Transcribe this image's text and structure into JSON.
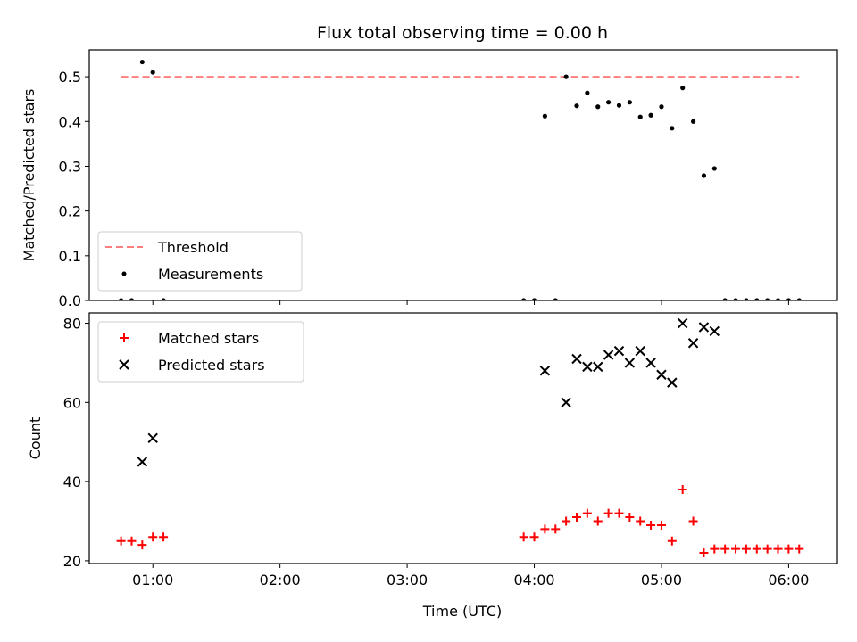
{
  "chart_data": [
    {
      "type": "scatter",
      "title": "Flux total observing time = 0.00 h",
      "ylabel": "Matched/Predicted stars",
      "xlabel": "",
      "ylim": [
        0,
        0.56
      ],
      "xlim": [
        "00:30",
        "06:23"
      ],
      "yticks": [
        "0.0",
        "0.1",
        "0.2",
        "0.3",
        "0.4",
        "0.5"
      ],
      "xticks": [
        "01:00",
        "02:00",
        "03:00",
        "04:00",
        "05:00",
        "06:00"
      ],
      "show_xtick_labels": false,
      "grid": false,
      "legend": {
        "placement": "lower-left",
        "entries": [
          "Threshold",
          "Measurements"
        ]
      },
      "threshold": {
        "name": "Threshold",
        "value": 0.5,
        "x_range": [
          "00:45",
          "06:05"
        ],
        "color": "#ff7f7f",
        "style": "dashed"
      },
      "series": [
        {
          "name": "Measurements",
          "color": "#000000",
          "marker": "dot",
          "points": [
            [
              "00:45",
              0.0
            ],
            [
              "00:50",
              0.0
            ],
            [
              "00:55",
              0.533
            ],
            [
              "01:00",
              0.51
            ],
            [
              "01:05",
              0.0
            ],
            [
              "03:55",
              0.0
            ],
            [
              "04:00",
              0.0
            ],
            [
              "04:05",
              0.412
            ],
            [
              "04:10",
              0.0
            ],
            [
              "04:15",
              0.5
            ],
            [
              "04:20",
              0.435
            ],
            [
              "04:25",
              0.464
            ],
            [
              "04:30",
              0.433
            ],
            [
              "04:35",
              0.443
            ],
            [
              "04:40",
              0.436
            ],
            [
              "04:45",
              0.443
            ],
            [
              "04:50",
              0.41
            ],
            [
              "04:55",
              0.414
            ],
            [
              "05:00",
              0.433
            ],
            [
              "05:05",
              0.385
            ],
            [
              "05:10",
              0.475
            ],
            [
              "05:15",
              0.4
            ],
            [
              "05:20",
              0.279
            ],
            [
              "05:25",
              0.295
            ],
            [
              "05:30",
              0.0
            ],
            [
              "05:35",
              0.0
            ],
            [
              "05:40",
              0.0
            ],
            [
              "05:45",
              0.0
            ],
            [
              "05:50",
              0.0
            ],
            [
              "05:55",
              0.0
            ],
            [
              "06:00",
              0.0
            ],
            [
              "06:05",
              0.0
            ]
          ]
        }
      ]
    },
    {
      "type": "scatter",
      "title": "",
      "xlabel": "Time (UTC)",
      "ylabel": "Count",
      "ylim": [
        19.3,
        82.6
      ],
      "xlim": [
        "00:30",
        "06:23"
      ],
      "yticks": [
        "20",
        "40",
        "60",
        "80"
      ],
      "xticks": [
        "01:00",
        "02:00",
        "03:00",
        "04:00",
        "05:00",
        "06:00"
      ],
      "show_xtick_labels": true,
      "grid": false,
      "legend": {
        "placement": "top-left",
        "entries": [
          "Matched stars",
          "Predicted stars"
        ]
      },
      "series": [
        {
          "name": "Matched stars",
          "color": "#ff0000",
          "marker": "plus",
          "points": [
            [
              "00:45",
              25
            ],
            [
              "00:50",
              25
            ],
            [
              "00:55",
              24
            ],
            [
              "01:00",
              26
            ],
            [
              "01:05",
              26
            ],
            [
              "03:55",
              26
            ],
            [
              "04:00",
              26
            ],
            [
              "04:05",
              28
            ],
            [
              "04:10",
              28
            ],
            [
              "04:15",
              30
            ],
            [
              "04:20",
              31
            ],
            [
              "04:25",
              32
            ],
            [
              "04:30",
              30
            ],
            [
              "04:35",
              32
            ],
            [
              "04:40",
              32
            ],
            [
              "04:45",
              31
            ],
            [
              "04:50",
              30
            ],
            [
              "04:55",
              29
            ],
            [
              "05:00",
              29
            ],
            [
              "05:05",
              25
            ],
            [
              "05:10",
              38
            ],
            [
              "05:15",
              30
            ],
            [
              "05:20",
              22
            ],
            [
              "05:25",
              23
            ],
            [
              "05:30",
              23
            ],
            [
              "05:35",
              23
            ],
            [
              "05:40",
              23
            ],
            [
              "05:45",
              23
            ],
            [
              "05:50",
              23
            ],
            [
              "05:55",
              23
            ],
            [
              "06:00",
              23
            ],
            [
              "06:05",
              23
            ]
          ]
        },
        {
          "name": "Predicted stars",
          "color": "#000000",
          "marker": "x",
          "points": [
            [
              "00:55",
              45
            ],
            [
              "01:00",
              51
            ],
            [
              "04:05",
              68
            ],
            [
              "04:15",
              60
            ],
            [
              "04:20",
              71
            ],
            [
              "04:25",
              69
            ],
            [
              "04:30",
              69
            ],
            [
              "04:35",
              72
            ],
            [
              "04:40",
              73
            ],
            [
              "04:45",
              70
            ],
            [
              "04:50",
              73
            ],
            [
              "04:55",
              70
            ],
            [
              "05:00",
              67
            ],
            [
              "05:05",
              65
            ],
            [
              "05:10",
              80
            ],
            [
              "05:15",
              75
            ],
            [
              "05:20",
              79
            ],
            [
              "05:25",
              78
            ]
          ]
        }
      ]
    }
  ]
}
